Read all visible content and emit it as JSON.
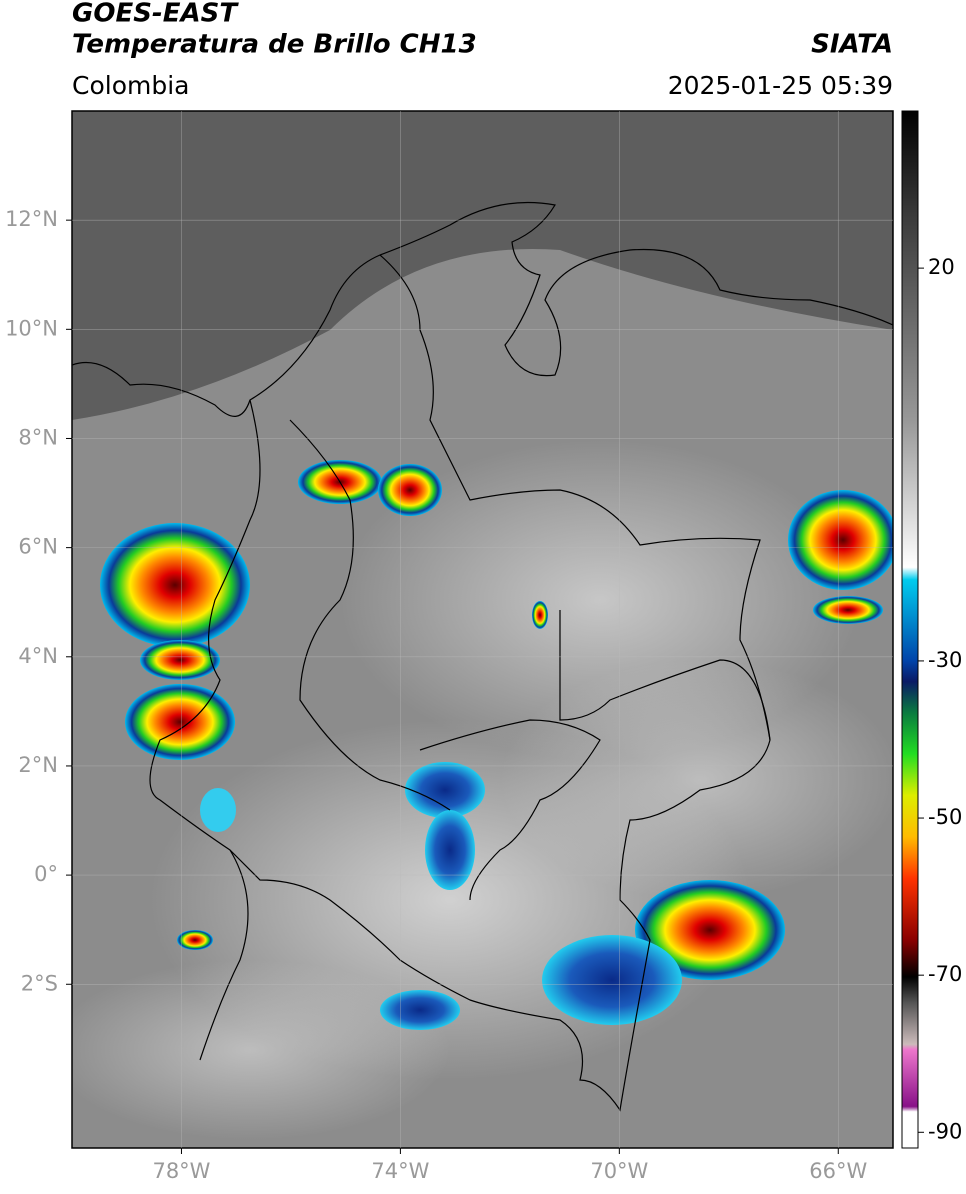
{
  "title": "GOES-EAST",
  "subtitle": "Temperatura de Brillo CH13",
  "source": "SIATA",
  "region": "Colombia",
  "datetime": "2025-01-25 05:39",
  "map": {
    "lonlim": [
      -80,
      -65
    ],
    "latlim": [
      -5,
      14
    ],
    "xticks": [
      {
        "value": -78,
        "label": "78°W"
      },
      {
        "value": -74,
        "label": "74°W"
      },
      {
        "value": -70,
        "label": "70°W"
      },
      {
        "value": -66,
        "label": "66°W"
      }
    ],
    "yticks": [
      {
        "value": 12,
        "label": "12°N"
      },
      {
        "value": 10,
        "label": "10°N"
      },
      {
        "value": 8,
        "label": "8°N"
      },
      {
        "value": 6,
        "label": "6°N"
      },
      {
        "value": 4,
        "label": "4°N"
      },
      {
        "value": 2,
        "label": "2°N"
      },
      {
        "value": 0,
        "label": "0°"
      },
      {
        "value": -2,
        "label": "2°S"
      }
    ],
    "grid": true
  },
  "colorbar": {
    "lim": [
      -92,
      40
    ],
    "ticks": [
      20,
      -30,
      -50,
      -70,
      -90
    ]
  }
}
